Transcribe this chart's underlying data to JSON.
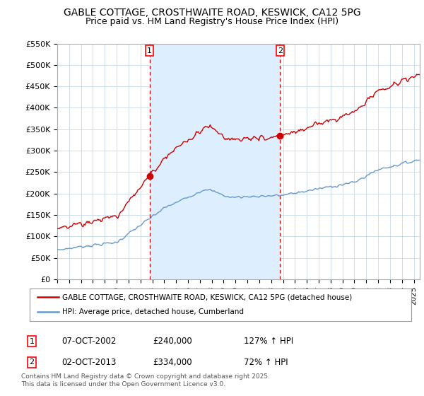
{
  "title": "GABLE COTTAGE, CROSTHWAITE ROAD, KESWICK, CA12 5PG",
  "subtitle": "Price paid vs. HM Land Registry's House Price Index (HPI)",
  "ylim": [
    0,
    550000
  ],
  "yticks": [
    0,
    50000,
    100000,
    150000,
    200000,
    250000,
    300000,
    350000,
    400000,
    450000,
    500000,
    550000
  ],
  "ytick_labels": [
    "£0",
    "£50K",
    "£100K",
    "£150K",
    "£200K",
    "£250K",
    "£300K",
    "£350K",
    "£400K",
    "£450K",
    "£500K",
    "£550K"
  ],
  "xlim_start": 1995.0,
  "xlim_end": 2025.5,
  "xticks": [
    1995,
    1996,
    1997,
    1998,
    1999,
    2000,
    2001,
    2002,
    2003,
    2004,
    2005,
    2006,
    2007,
    2008,
    2009,
    2010,
    2011,
    2012,
    2013,
    2014,
    2015,
    2016,
    2017,
    2018,
    2019,
    2020,
    2021,
    2022,
    2023,
    2024,
    2025
  ],
  "background_color": "#ffffff",
  "plot_bg_color": "#ffffff",
  "grid_color": "#ccddee",
  "shade_color": "#ddeeff",
  "red_line_color": "#cc0000",
  "blue_line_color": "#6699cc",
  "marker1_x": 2002.77,
  "marker1_y": 240000,
  "marker1_label": "1",
  "marker1_date": "07-OCT-2002",
  "marker1_price": "£240,000",
  "marker1_hpi": "127% ↑ HPI",
  "marker2_x": 2013.75,
  "marker2_y": 334000,
  "marker2_label": "2",
  "marker2_date": "02-OCT-2013",
  "marker2_price": "£334,000",
  "marker2_hpi": "72% ↑ HPI",
  "legend_line1": "GABLE COTTAGE, CROSTHWAITE ROAD, KESWICK, CA12 5PG (detached house)",
  "legend_line2": "HPI: Average price, detached house, Cumberland",
  "footer": "Contains HM Land Registry data © Crown copyright and database right 2025.\nThis data is licensed under the Open Government Licence v3.0.",
  "title_fontsize": 10,
  "subtitle_fontsize": 9
}
